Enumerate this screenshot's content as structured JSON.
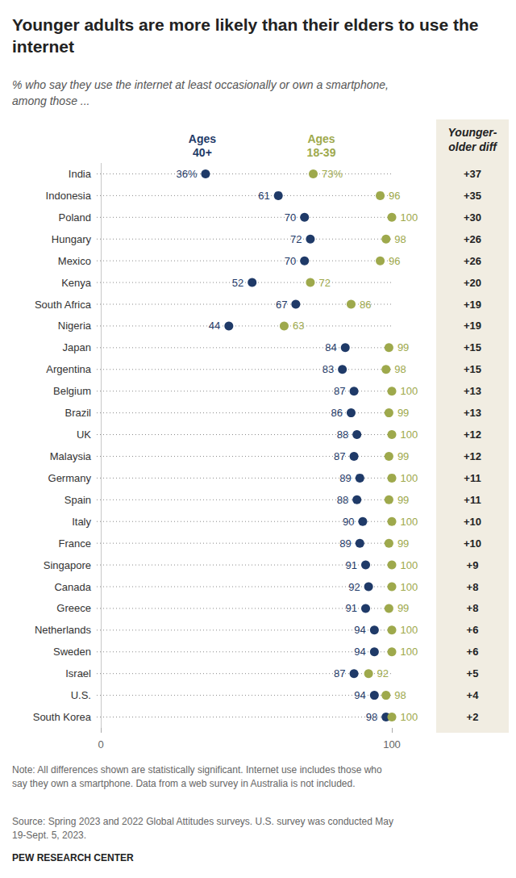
{
  "chart_data": {
    "type": "dot",
    "title": "Younger adults are more likely than their elders to use the internet",
    "subtitle": "% who say they use the internet at least occasionally or own a smartphone, among those ...",
    "orientation": "horizontal",
    "data_labels": true,
    "categories": [
      "India",
      "Indonesia",
      "Poland",
      "Hungary",
      "Mexico",
      "Kenya",
      "South Africa",
      "Nigeria",
      "Japan",
      "Argentina",
      "Belgium",
      "Brazil",
      "UK",
      "Malaysia",
      "Germany",
      "Spain",
      "Italy",
      "France",
      "Singapore",
      "Canada",
      "Greece",
      "Netherlands",
      "Sweden",
      "Israel",
      "U.S.",
      "South Korea"
    ],
    "series": [
      {
        "name": "Ages 40+",
        "color": "#1f3a68",
        "values": [
          36,
          61,
          70,
          72,
          70,
          52,
          67,
          44,
          84,
          83,
          87,
          86,
          88,
          87,
          89,
          88,
          90,
          89,
          91,
          92,
          91,
          94,
          94,
          87,
          94,
          98
        ],
        "value_labels": [
          "36%",
          "61",
          "70",
          "72",
          "70",
          "52",
          "67",
          "44",
          "84",
          "83",
          "87",
          "86",
          "88",
          "87",
          "89",
          "88",
          "90",
          "89",
          "91",
          "92",
          "91",
          "94",
          "94",
          "87",
          "94",
          "98"
        ]
      },
      {
        "name": "Ages 18-39",
        "color": "#9ea94c",
        "values": [
          73,
          96,
          100,
          98,
          96,
          72,
          86,
          63,
          99,
          98,
          100,
          99,
          100,
          99,
          100,
          99,
          100,
          99,
          100,
          100,
          99,
          100,
          100,
          92,
          98,
          100
        ],
        "value_labels": [
          "73%",
          "96",
          "100",
          "98",
          "96",
          "72",
          "86",
          "63",
          "99",
          "98",
          "100",
          "99",
          "100",
          "99",
          "100",
          "99",
          "100",
          "99",
          "100",
          "100",
          "99",
          "100",
          "100",
          "92",
          "98",
          "100"
        ]
      }
    ],
    "diff": {
      "title": "Younger-older diff",
      "values": [
        37,
        35,
        30,
        26,
        26,
        20,
        19,
        19,
        15,
        15,
        13,
        13,
        12,
        12,
        11,
        11,
        10,
        10,
        9,
        8,
        8,
        6,
        6,
        5,
        4,
        2
      ],
      "value_labels": [
        "+37",
        "+35",
        "+30",
        "+26",
        "+26",
        "+20",
        "+19",
        "+19",
        "+15",
        "+15",
        "+13",
        "+13",
        "+12",
        "+12",
        "+11",
        "+11",
        "+10",
        "+10",
        "+9",
        "+8",
        "+8",
        "+6",
        "+6",
        "+5",
        "+4",
        "+2"
      ]
    },
    "xlim": [
      0,
      100
    ],
    "xticks": [
      0,
      100
    ],
    "notes": [
      "Note: All differences shown are statistically significant. Internet use includes those who say they own a smartphone. Data from a web survey in Australia is not included.",
      "Source: Spring 2023 and 2022 Global Attitudes surveys. U.S. survey was conducted May 19-Sept. 5, 2023."
    ],
    "credit": "PEW RESEARCH CENTER"
  }
}
